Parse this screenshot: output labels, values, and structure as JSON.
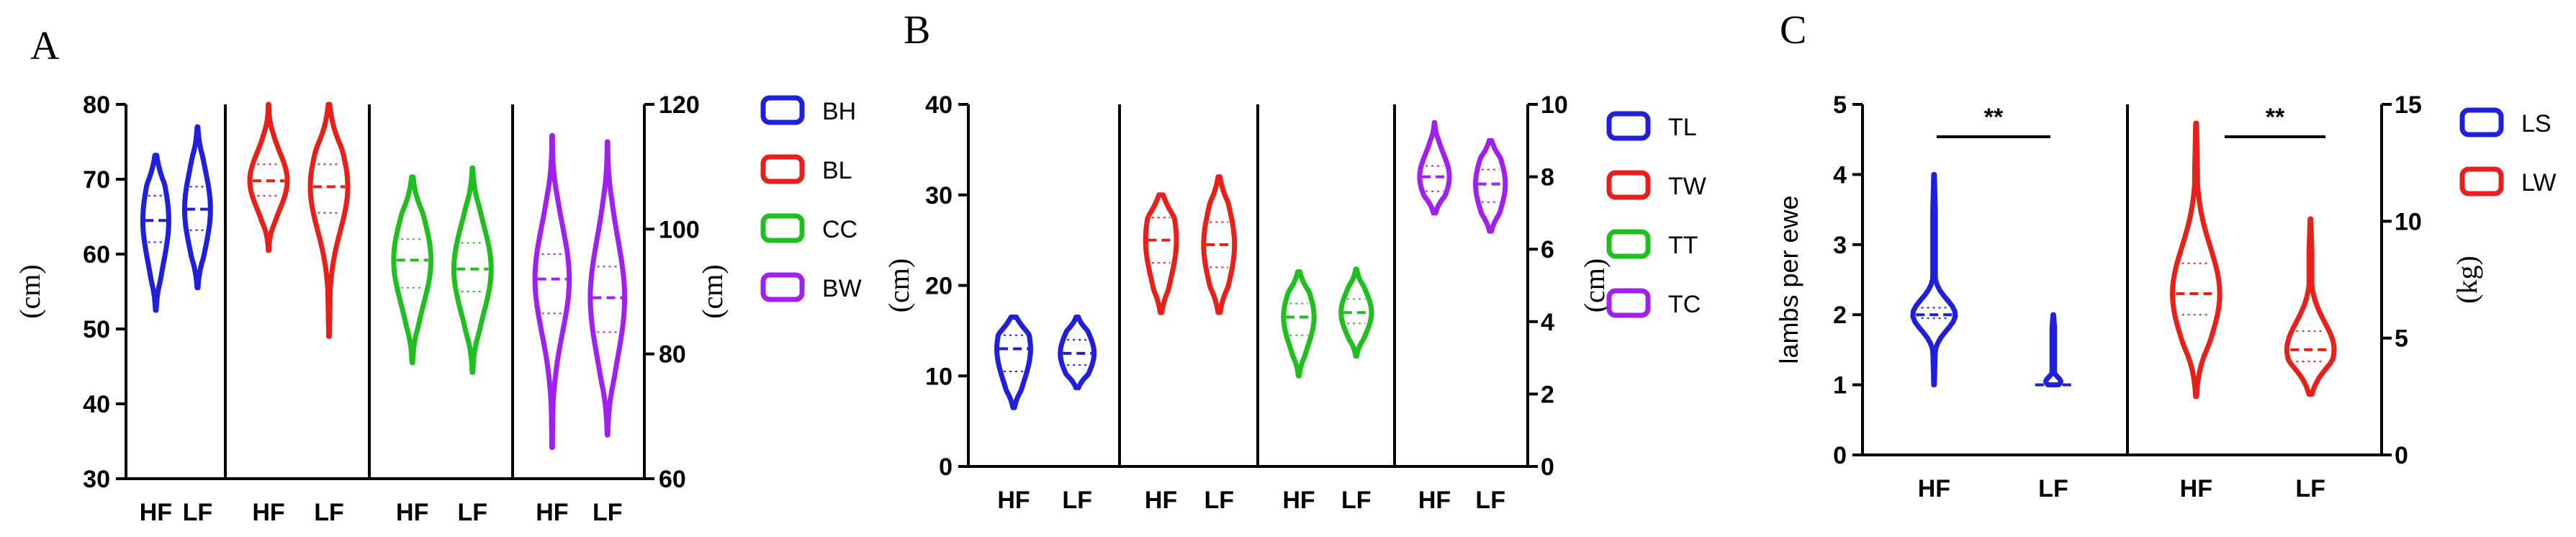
{
  "chart_data": [
    {
      "panel": "A",
      "type": "violin",
      "categories": [
        "HF",
        "LF"
      ],
      "y_left": {
        "label": "(cm)",
        "ticks": [
          30,
          40,
          50,
          60,
          70,
          80
        ],
        "lim": [
          30,
          80
        ]
      },
      "y_right": {
        "label": "(cm)",
        "ticks": [
          60,
          80,
          100,
          120
        ],
        "lim": [
          60,
          120
        ]
      },
      "legend": {
        "placement": "right",
        "entries": [
          "BH",
          "BL",
          "CC",
          "BW"
        ]
      },
      "series": [
        {
          "name": "BH",
          "color": "#1f1fdc",
          "axis": "left",
          "groups": [
            {
              "category": "HF",
              "min": 52.5,
              "max": 73.2,
              "q1": 61.6,
              "median": 64.5,
              "q3": 67.8
            },
            {
              "category": "LF",
              "min": 55.5,
              "max": 77.0,
              "q1": 63.2,
              "median": 66.0,
              "q3": 69.0
            }
          ]
        },
        {
          "name": "BL",
          "color": "#e8201a",
          "axis": "left",
          "groups": [
            {
              "category": "HF",
              "min": 60.5,
              "max": 80.0,
              "q1": 67.8,
              "median": 69.8,
              "q3": 72.0
            },
            {
              "category": "LF",
              "min": 49.0,
              "max": 80.0,
              "q1": 65.5,
              "median": 69.0,
              "q3": 72.0
            }
          ]
        },
        {
          "name": "CC",
          "color": "#1fbf1f",
          "axis": "left",
          "groups": [
            {
              "category": "HF",
              "min": 45.5,
              "max": 70.3,
              "q1": 55.5,
              "median": 59.2,
              "q3": 62.0
            },
            {
              "category": "LF",
              "min": 44.2,
              "max": 71.5,
              "q1": 55.0,
              "median": 58.0,
              "q3": 61.5
            }
          ]
        },
        {
          "name": "BW",
          "color": "#a020f0",
          "axis": "right",
          "groups": [
            {
              "category": "HF",
              "min": 65.0,
              "max": 115.0,
              "q1": 86.5,
              "median": 92.0,
              "q3": 96.0
            },
            {
              "category": "LF",
              "min": 67.0,
              "max": 114.0,
              "q1": 83.5,
              "median": 89.0,
              "q3": 94.0
            }
          ]
        }
      ]
    },
    {
      "panel": "B",
      "type": "violin",
      "categories": [
        "HF",
        "LF"
      ],
      "y_left": {
        "label": "(cm)",
        "ticks": [
          0,
          10,
          20,
          30,
          40
        ],
        "lim": [
          0,
          40
        ]
      },
      "y_right": {
        "label": "(cm)",
        "ticks": [
          0,
          2,
          4,
          6,
          8,
          10
        ],
        "lim": [
          0,
          10
        ]
      },
      "legend": {
        "placement": "right",
        "entries": [
          "TL",
          "TW",
          "TT",
          "TC"
        ]
      },
      "series": [
        {
          "name": "TL",
          "color": "#1f1fdc",
          "axis": "left",
          "groups": [
            {
              "category": "HF",
              "min": 6.5,
              "max": 16.5,
              "q1": 10.5,
              "median": 13.0,
              "q3": 14.5
            },
            {
              "category": "LF",
              "min": 8.7,
              "max": 16.5,
              "q1": 11.2,
              "median": 12.5,
              "q3": 14.0
            }
          ]
        },
        {
          "name": "TW",
          "color": "#e8201a",
          "axis": "left",
          "groups": [
            {
              "category": "HF",
              "min": 17.0,
              "max": 30.0,
              "q1": 22.5,
              "median": 25.0,
              "q3": 27.5
            },
            {
              "category": "LF",
              "min": 17.0,
              "max": 32.0,
              "q1": 22.0,
              "median": 24.5,
              "q3": 27.0
            }
          ]
        },
        {
          "name": "TT",
          "color": "#1fbf1f",
          "axis": "left",
          "groups": [
            {
              "category": "HF",
              "min": 10.0,
              "max": 21.5,
              "q1": 14.5,
              "median": 16.5,
              "q3": 18.0
            },
            {
              "category": "LF",
              "min": 12.2,
              "max": 21.8,
              "q1": 15.8,
              "median": 17.0,
              "q3": 18.5
            }
          ]
        },
        {
          "name": "TC",
          "color": "#a020f0",
          "axis": "right",
          "groups": [
            {
              "category": "HF",
              "min": 7.0,
              "max": 9.5,
              "q1": 7.6,
              "median": 8.0,
              "q3": 8.3
            },
            {
              "category": "LF",
              "min": 6.5,
              "max": 9.0,
              "q1": 7.3,
              "median": 7.8,
              "q3": 8.2
            }
          ]
        }
      ]
    },
    {
      "panel": "C",
      "type": "violin",
      "categories": [
        "HF",
        "LF"
      ],
      "y_left": {
        "label": "lambs per ewe",
        "ticks": [
          0,
          1,
          2,
          3,
          4,
          5
        ],
        "lim": [
          0,
          5
        ]
      },
      "y_right": {
        "label": "(kg)",
        "ticks": [
          0,
          5,
          10,
          15
        ],
        "lim": [
          0,
          15
        ]
      },
      "legend": {
        "placement": "right",
        "entries": [
          "LS",
          "LW"
        ]
      },
      "annotations": [
        "**",
        "**"
      ],
      "series": [
        {
          "name": "LS",
          "color": "#1f1fdc",
          "axis": "left",
          "groups": [
            {
              "category": "HF",
              "min": 1.0,
              "max": 4.0,
              "q1": 1.95,
              "median": 2.0,
              "q3": 2.1
            },
            {
              "category": "LF",
              "min": 1.0,
              "max": 2.0,
              "q1": 1.0,
              "median": 1.0,
              "q3": 1.0
            }
          ]
        },
        {
          "name": "LW",
          "color": "#e8201a",
          "axis": "right",
          "groups": [
            {
              "category": "HF",
              "min": 2.5,
              "max": 14.2,
              "q1": 6.0,
              "median": 6.9,
              "q3": 8.2
            },
            {
              "category": "LF",
              "min": 2.6,
              "max": 10.1,
              "q1": 4.0,
              "median": 4.5,
              "q3": 5.3
            }
          ]
        }
      ]
    }
  ],
  "panel_labels": [
    "A",
    "B",
    "C"
  ]
}
